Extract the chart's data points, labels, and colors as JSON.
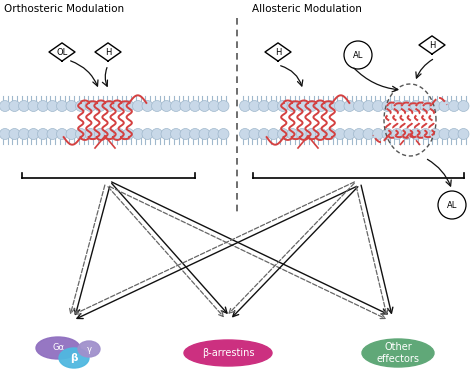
{
  "title_left": "Orthosteric Modulation",
  "title_right": "Allosteric Modulation",
  "bg_color": "#ffffff",
  "membrane_color": "#c8d8e8",
  "membrane_edge": "#a0b8cc",
  "gpcr_color": "#d44040",
  "gpcr_dashed_color": "#d44040",
  "text_color": "#000000",
  "label_OL": "OL",
  "label_H": "H",
  "label_AL": "AL",
  "label_Ga": "Gα",
  "label_beta": "β",
  "label_gamma": "γ",
  "label_barr": "β-arrestins",
  "label_other": "Other\neffectors",
  "ellipse_Ga_color": "#9070c0",
  "ellipse_beta_color": "#50b8e0",
  "ellipse_gamma_color": "#a090cc",
  "ellipse_barr_color": "#cc3080",
  "ellipse_other_color": "#60a878",
  "arrow_color": "#111111",
  "arrow_dashed_color": "#666666",
  "divider_color": "#555555"
}
